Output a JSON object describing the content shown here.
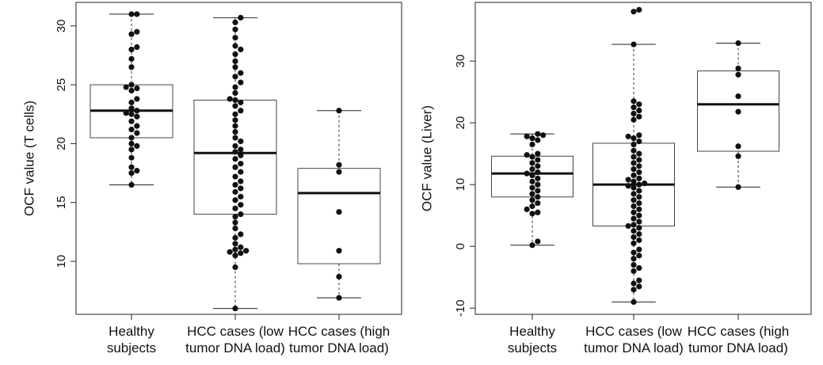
{
  "chart_data": [
    {
      "type": "box",
      "ylabel": "OCF value (T cells)",
      "ylim": [
        5.5,
        32
      ],
      "yticks": [
        10,
        15,
        20,
        25,
        30
      ],
      "categories": [
        {
          "lines": [
            "Healthy",
            "subjects"
          ]
        },
        {
          "lines": [
            "HCC cases (low",
            "tumor DNA load)"
          ]
        },
        {
          "lines": [
            "HCC cases (high",
            "tumor DNA load)"
          ]
        }
      ],
      "boxes": [
        {
          "min": 16.5,
          "q1": 20.5,
          "median": 22.8,
          "q3": 25.0,
          "max": 31.0,
          "points": [
            31.0,
            31.0,
            29.5,
            29.3,
            28.2,
            28.0,
            27.2,
            26.5,
            25.0,
            24.8,
            24.7,
            24.5,
            23.8,
            23.5,
            23.0,
            22.8,
            22.6,
            22.5,
            22.3,
            21.9,
            21.5,
            21.2,
            20.9,
            20.5,
            20.0,
            19.8,
            19.5,
            18.8,
            18.0,
            17.7,
            17.5,
            16.5
          ]
        },
        {
          "min": 6.0,
          "q1": 14.0,
          "median": 19.2,
          "q3": 23.7,
          "max": 30.7,
          "points": [
            30.7,
            30.3,
            29.7,
            29.0,
            28.3,
            28.0,
            27.6,
            27.0,
            26.5,
            26.0,
            25.7,
            25.2,
            24.8,
            24.3,
            23.8,
            23.7,
            23.5,
            23.2,
            22.8,
            22.5,
            22.0,
            21.5,
            21.0,
            20.5,
            20.2,
            19.8,
            19.5,
            19.3,
            19.0,
            18.7,
            18.3,
            18.0,
            17.6,
            17.2,
            16.8,
            16.5,
            16.2,
            15.9,
            15.5,
            15.2,
            14.8,
            14.5,
            14.0,
            13.8,
            13.3,
            12.8,
            12.3,
            12.0,
            11.5,
            11.2,
            11.0,
            10.9,
            10.8,
            10.7,
            10.5,
            9.5,
            6.0
          ]
        },
        {
          "min": 6.9,
          "q1": 9.8,
          "median": 15.8,
          "q3": 17.9,
          "max": 22.8,
          "points": [
            22.8,
            18.2,
            17.6,
            14.2,
            10.9,
            8.7,
            6.9
          ]
        }
      ]
    },
    {
      "type": "box",
      "ylabel": "OCF value (Liver)",
      "ylim": [
        -11,
        39.5
      ],
      "yticks": [
        -10,
        0,
        10,
        20,
        30
      ],
      "categories": [
        {
          "lines": [
            "Healthy",
            "subjects"
          ]
        },
        {
          "lines": [
            "HCC cases (low",
            "tumor DNA load)"
          ]
        },
        {
          "lines": [
            "HCC cases (high",
            "tumor DNA load)"
          ]
        }
      ],
      "boxes": [
        {
          "min": 0.2,
          "q1": 8.0,
          "median": 11.8,
          "q3": 14.6,
          "max": 18.2,
          "points": [
            18.2,
            18.0,
            17.8,
            17.5,
            17.2,
            16.5,
            15.0,
            14.8,
            14.5,
            14.0,
            13.5,
            13.0,
            12.5,
            12.0,
            11.8,
            11.5,
            11.0,
            10.5,
            10.0,
            9.5,
            9.0,
            8.5,
            8.0,
            7.5,
            7.0,
            6.5,
            6.0,
            5.5,
            5.3,
            0.8,
            0.2
          ]
        },
        {
          "min": -9.0,
          "q1": 3.3,
          "median": 10.0,
          "q3": 16.7,
          "max": 32.7,
          "points": [
            38.3,
            38.0,
            32.7,
            23.5,
            23.0,
            22.5,
            22.0,
            21.5,
            21.0,
            20.5,
            18.0,
            17.8,
            17.5,
            17.0,
            16.5,
            15.5,
            15.0,
            14.5,
            14.0,
            13.5,
            13.0,
            12.5,
            12.0,
            11.5,
            11.0,
            10.8,
            10.5,
            10.2,
            10.0,
            9.8,
            9.5,
            9.0,
            8.5,
            8.0,
            7.5,
            7.0,
            6.5,
            6.0,
            5.5,
            5.0,
            4.5,
            4.0,
            3.5,
            3.3,
            3.0,
            2.5,
            2.0,
            1.5,
            1.0,
            0.5,
            -0.5,
            -1.0,
            -1.5,
            -2.0,
            -3.0,
            -3.5,
            -4.0,
            -5.5,
            -6.0,
            -6.5,
            -7.0,
            -9.0
          ]
        },
        {
          "min": 9.6,
          "q1": 15.4,
          "median": 23.0,
          "q3": 28.4,
          "max": 32.9,
          "points": [
            32.9,
            28.8,
            27.8,
            24.3,
            21.8,
            16.2,
            14.6,
            9.6
          ]
        }
      ]
    }
  ]
}
